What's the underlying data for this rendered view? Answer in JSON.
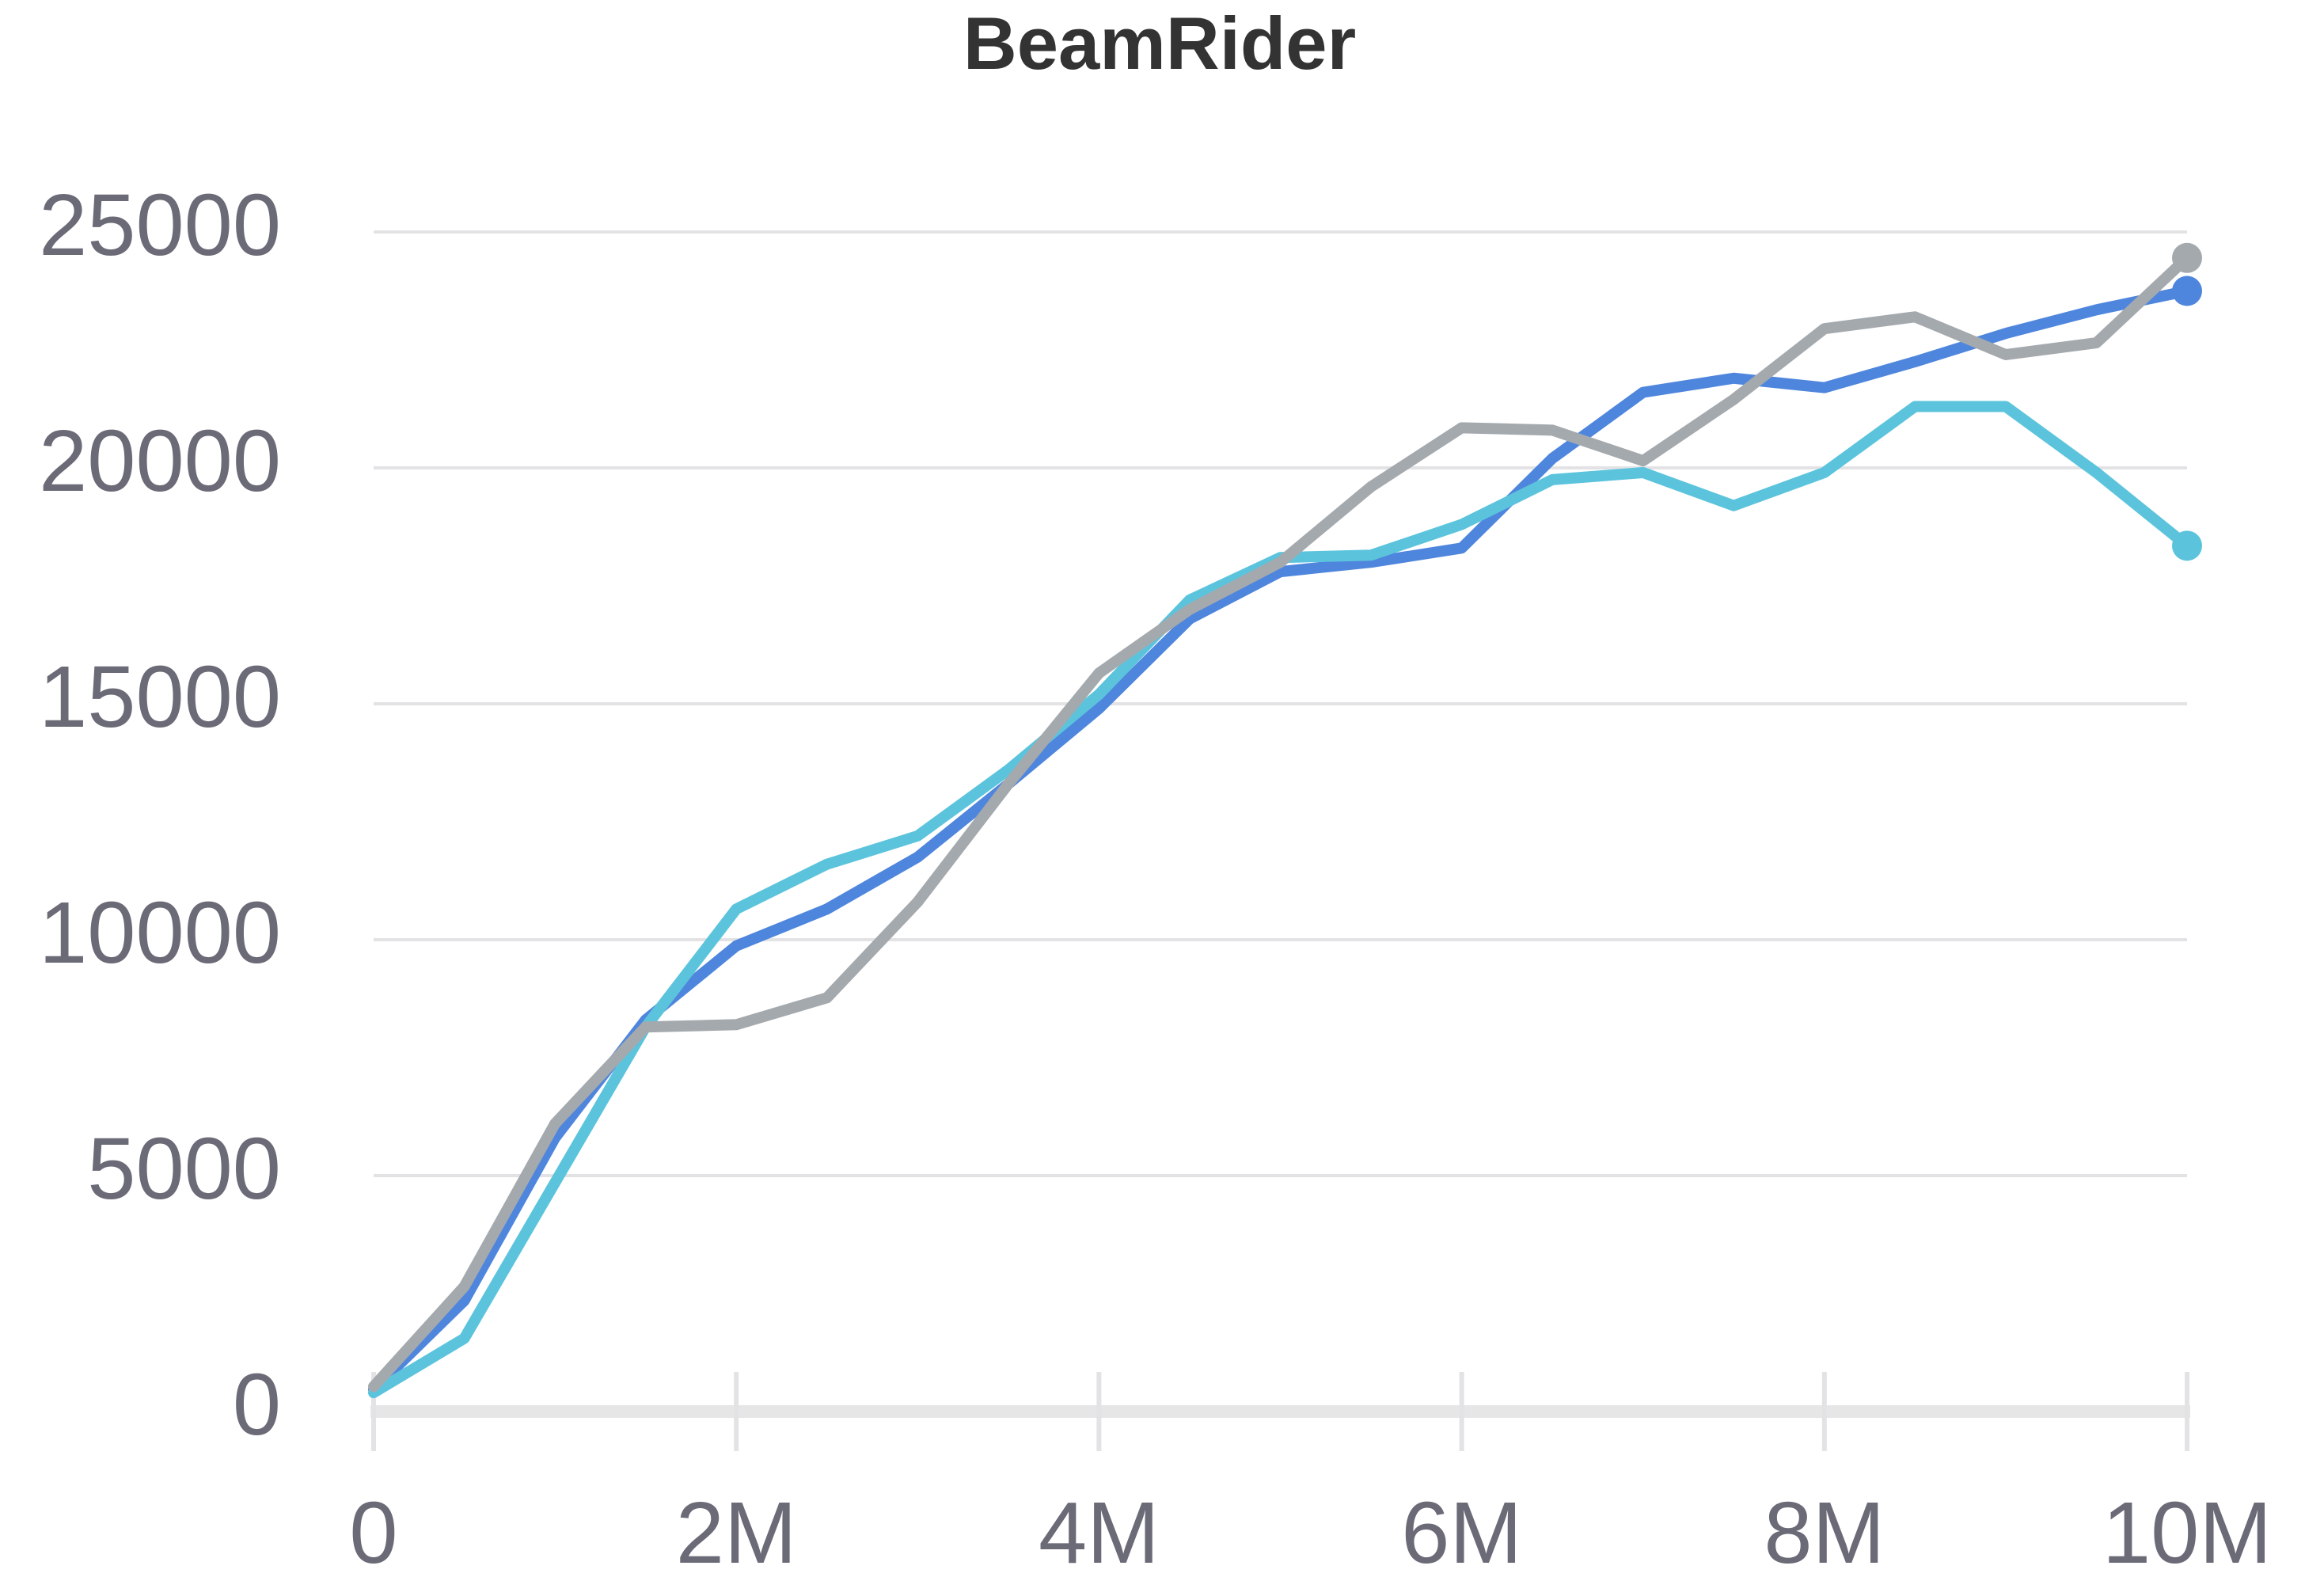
{
  "chart_data": {
    "type": "line",
    "title": "BeamRider",
    "x": [
      0,
      500000,
      1000000,
      1500000,
      2000000,
      2500000,
      3000000,
      3500000,
      4000000,
      4500000,
      5000000,
      5500000,
      6000000,
      6500000,
      7000000,
      7500000,
      8000000,
      8500000,
      9000000,
      9500000,
      10000000
    ],
    "series": [
      {
        "color": "#4f86dd",
        "values": [
          470,
          2350,
          5800,
          8300,
          9870,
          10650,
          11750,
          13300,
          14900,
          16800,
          17800,
          18000,
          18300,
          20200,
          21600,
          21900,
          21700,
          22250,
          22850,
          23350,
          23750
        ]
      },
      {
        "color": "#5bc4dc",
        "values": [
          400,
          1550,
          4850,
          8150,
          10650,
          11600,
          12200,
          13600,
          15200,
          17200,
          18100,
          18150,
          18800,
          19750,
          19900,
          19200,
          19900,
          21300,
          21300,
          19900,
          18350
        ]
      },
      {
        "color": "#a4a9ae",
        "values": [
          530,
          2650,
          6100,
          8150,
          8200,
          8770,
          10800,
          13300,
          15650,
          17000,
          18000,
          19600,
          20850,
          20800,
          20150,
          21450,
          22950,
          23200,
          22400,
          22650,
          24450
        ]
      }
    ],
    "xlim": [
      0,
      10000000
    ],
    "xticks": [
      0,
      {
        "value": 2000000,
        "label": "2M"
      },
      {
        "value": 4000000,
        "label": "4M"
      },
      {
        "value": 6000000,
        "label": "6M"
      },
      {
        "value": 8000000,
        "label": "8M"
      },
      {
        "value": 10000000,
        "label": "10M"
      }
    ],
    "ylim": [
      0,
      25000
    ],
    "yticks": [
      0,
      5000,
      10000,
      15000,
      20000,
      25000
    ],
    "grid": true
  }
}
